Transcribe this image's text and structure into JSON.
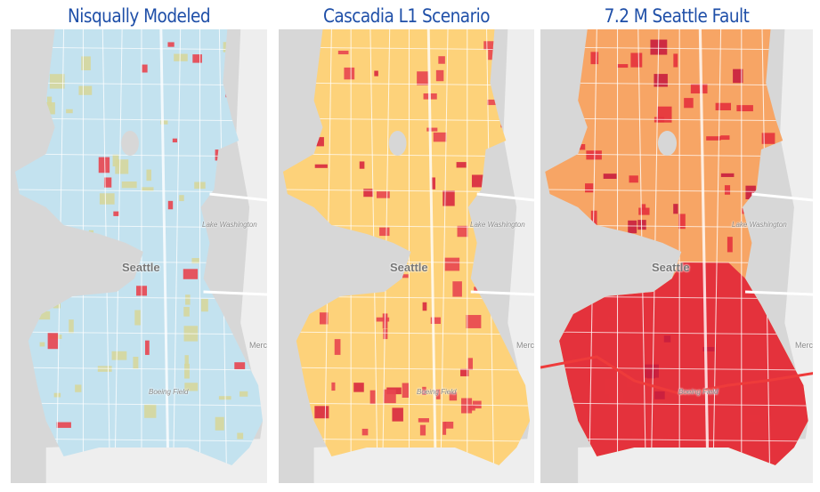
{
  "panels": [
    {
      "title": "Nisqually Modeled",
      "base_color": "#c3e2ef",
      "accent_color": "#d6d79c",
      "hot_color": "#e8454f"
    },
    {
      "title": "Cascadia L1 Scenario",
      "base_color": "#fdd27a",
      "accent_color": "#e8454f",
      "hot_color": "#d8283f"
    },
    {
      "title": "7.2 M Seattle Fault",
      "base_color": "#f7a565",
      "accent_color": "#e4323c",
      "hot_color": "#c81e3e"
    }
  ],
  "map_labels": {
    "city": "Seattle",
    "lake": "Lake Washington",
    "airport": "Boeing Field",
    "island": "Merc"
  },
  "colors": {
    "water": "#d7d7d7",
    "land_outside": "#eeeeee",
    "roads": "#ffffff",
    "fault_line": "#ee3b3b",
    "title": "#1f4fa8"
  }
}
